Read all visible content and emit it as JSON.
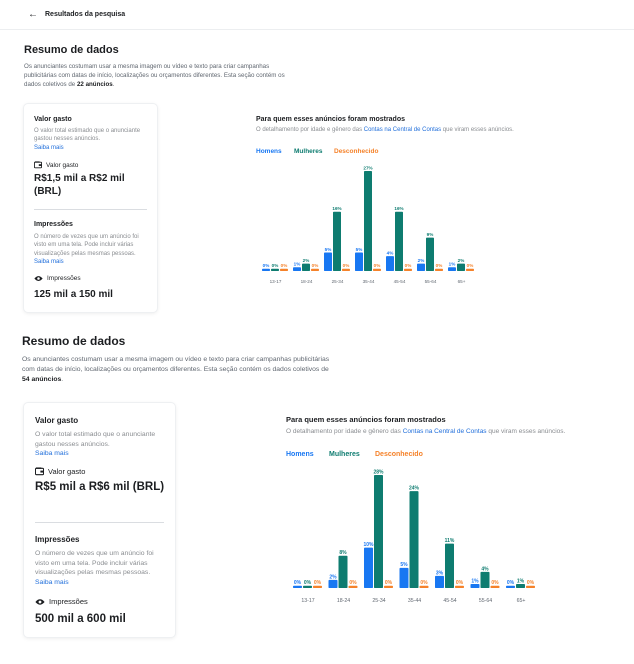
{
  "header": {
    "back_icon": "arrow-left-icon",
    "title": "Resultados da pesquisa"
  },
  "colors": {
    "homens": "#1877f2",
    "mulheres": "#0e7c70",
    "desconhecido": "#f5822a",
    "link": "#216fdb"
  },
  "summaries": [
    {
      "title": "Resumo de dados",
      "desc_prefix": "Os anunciantes costumam usar a mesma imagem ou vídeo e texto para criar campanhas publicitárias com datas de início, localizações ou orçamentos diferentes. Esta seção contém os dados coletivos de ",
      "ad_count": "22 anúncios",
      "desc_suffix": ".",
      "valor_gasto_title": "Valor gasto",
      "valor_gasto_desc": "O valor total estimado que o anunciante gastou nesses anúncios.",
      "saiba_mais_1": "Saiba mais",
      "spend_icon_label": "Valor gasto",
      "spend_value": "R$1,5 mil a R$2 mil (BRL)",
      "impressoes_title": "Impressões",
      "impressoes_desc": "O número de vezes que um anúncio foi visto em uma tela. Pode incluir várias visualizações pelas mesmas pessoas.",
      "saiba_mais_2": "Saiba mais",
      "impressions_icon_label": "Impressões",
      "impressions_value": "125 mil a 150 mil",
      "chart_title": "Para quem esses anúncios foram mostrados",
      "chart_sub_prefix": "O detalhamento por idade e gênero das ",
      "chart_sub_link": "Contas na Central de Contas",
      "chart_sub_suffix": " que viram esses anúncios.",
      "legend": [
        "Homens",
        "Mulheres",
        "Desconhecido"
      ]
    },
    {
      "title": "Resumo de dados",
      "desc_prefix": "Os anunciantes costumam usar a mesma imagem ou vídeo e texto para criar campanhas publicitárias com datas de início, localizações ou orçamentos diferentes. Esta seção contém os dados coletivos de ",
      "ad_count": "54 anúncios",
      "desc_suffix": ".",
      "valor_gasto_title": "Valor gasto",
      "valor_gasto_desc": "O valor total estimado que o anunciante gastou nesses anúncios.",
      "saiba_mais_1": "Saiba mais",
      "spend_icon_label": "Valor gasto",
      "spend_value": "R$5 mil a R$6 mil (BRL)",
      "impressoes_title": "Impressões",
      "impressoes_desc": "O número de vezes que um anúncio foi visto em uma tela. Pode incluir várias visualizações pelas mesmas pessoas.",
      "saiba_mais_2": "Saiba mais",
      "impressions_icon_label": "Impressões",
      "impressions_value": "500 mil a 600 mil",
      "chart_title": "Para quem esses anúncios foram mostrados",
      "chart_sub_prefix": "O detalhamento por idade e gênero das ",
      "chart_sub_link": "Contas na Central de Contas",
      "chart_sub_suffix": " que viram esses anúncios.",
      "legend": [
        "Homens",
        "Mulheres",
        "Desconhecido"
      ]
    }
  ],
  "chart_data": [
    {
      "type": "bar",
      "title": "Para quem esses anúncios foram mostrados",
      "categories": [
        "13-17",
        "18-24",
        "25-34",
        "35-44",
        "45-54",
        "55-64",
        "65+"
      ],
      "series": [
        {
          "name": "Homens",
          "values": [
            0,
            1,
            5,
            5,
            4,
            2,
            1
          ]
        },
        {
          "name": "Mulheres",
          "values": [
            0,
            2,
            16,
            27,
            16,
            9,
            2
          ]
        },
        {
          "name": "Desconhecido",
          "values": [
            0,
            0,
            0,
            0,
            0,
            0,
            0
          ]
        }
      ],
      "ylim": [
        0,
        27
      ]
    },
    {
      "type": "bar",
      "title": "Para quem esses anúncios foram mostrados",
      "categories": [
        "13-17",
        "18-24",
        "25-34",
        "35-44",
        "45-54",
        "55-64",
        "65+"
      ],
      "series": [
        {
          "name": "Homens",
          "values": [
            0,
            2,
            10,
            5,
            3,
            1,
            0
          ]
        },
        {
          "name": "Mulheres",
          "values": [
            0,
            8,
            28,
            24,
            11,
            4,
            1
          ]
        },
        {
          "name": "Desconhecido",
          "values": [
            0,
            0,
            0,
            0,
            0,
            0,
            0
          ]
        }
      ],
      "ylim": [
        0,
        28
      ]
    }
  ]
}
